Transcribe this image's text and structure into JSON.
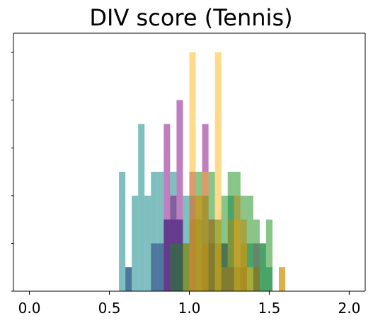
{
  "chart_data": {
    "type": "histogram",
    "title": "DIV score (Tennis)",
    "xlabel": "",
    "ylabel": "",
    "xlim": [
      -0.1,
      2.1
    ],
    "ylim": [
      0,
      5.4
    ],
    "x_ticks": [
      "0.0",
      "0.5",
      "1.0",
      "1.5",
      "2.0"
    ],
    "y_ticks_labeled": false,
    "grid": false,
    "legend": "none",
    "bin_width": 0.04,
    "series": [
      {
        "color": "#008080",
        "counts": [
          {
            "x": 0.58,
            "y": 2.5
          },
          {
            "x": 0.62,
            "y": 0.5
          },
          {
            "x": 0.66,
            "y": 2.0
          },
          {
            "x": 0.7,
            "y": 3.5
          },
          {
            "x": 0.74,
            "y": 2.0
          },
          {
            "x": 0.78,
            "y": 2.5
          },
          {
            "x": 0.82,
            "y": 2.5
          },
          {
            "x": 0.86,
            "y": 1.5
          },
          {
            "x": 0.9,
            "y": 2.5
          },
          {
            "x": 0.94,
            "y": 1.5
          },
          {
            "x": 0.98,
            "y": 2.0
          },
          {
            "x": 1.02,
            "y": 2.0
          },
          {
            "x": 1.06,
            "y": 1.5
          },
          {
            "x": 1.1,
            "y": 2.0
          },
          {
            "x": 1.14,
            "y": 1.0
          },
          {
            "x": 1.18,
            "y": 1.5
          },
          {
            "x": 1.22,
            "y": 1.0
          },
          {
            "x": 1.26,
            "y": 2.0
          },
          {
            "x": 1.3,
            "y": 0.5
          },
          {
            "x": 1.34,
            "y": 1.0
          },
          {
            "x": 1.38,
            "y": 1.0
          },
          {
            "x": 1.42,
            "y": 0.5
          },
          {
            "x": 1.46,
            "y": 1.0
          },
          {
            "x": 1.5,
            "y": 0.5
          }
        ]
      },
      {
        "color": "#1b2f7a",
        "counts": [
          {
            "x": 0.62,
            "y": 0.5
          },
          {
            "x": 0.78,
            "y": 1.0
          },
          {
            "x": 0.82,
            "y": 1.0
          },
          {
            "x": 0.86,
            "y": 1.5
          },
          {
            "x": 0.9,
            "y": 1.5
          },
          {
            "x": 0.94,
            "y": 1.5
          }
        ]
      },
      {
        "color": "#800080",
        "counts": [
          {
            "x": 0.86,
            "y": 3.5
          },
          {
            "x": 0.9,
            "y": 2.0
          },
          {
            "x": 0.94,
            "y": 4.0
          },
          {
            "x": 1.02,
            "y": 2.5
          },
          {
            "x": 1.1,
            "y": 3.5
          },
          {
            "x": 1.14,
            "y": 1.5
          },
          {
            "x": 1.22,
            "y": 1.0
          },
          {
            "x": 1.26,
            "y": 0.5
          },
          {
            "x": 1.34,
            "y": 0.5
          },
          {
            "x": 1.42,
            "y": 1.0
          }
        ]
      },
      {
        "color": "#138a13",
        "counts": [
          {
            "x": 0.9,
            "y": 1.0
          },
          {
            "x": 0.94,
            "y": 1.0
          },
          {
            "x": 0.98,
            "y": 1.0
          },
          {
            "x": 1.06,
            "y": 2.5
          },
          {
            "x": 1.1,
            "y": 2.0
          },
          {
            "x": 1.14,
            "y": 2.5
          },
          {
            "x": 1.18,
            "y": 1.5
          },
          {
            "x": 1.22,
            "y": 2.0
          },
          {
            "x": 1.26,
            "y": 2.5
          },
          {
            "x": 1.3,
            "y": 2.5
          },
          {
            "x": 1.34,
            "y": 2.0
          },
          {
            "x": 1.38,
            "y": 2.0
          },
          {
            "x": 1.42,
            "y": 1.5
          },
          {
            "x": 1.46,
            "y": 1.0
          },
          {
            "x": 1.5,
            "y": 1.5
          }
        ]
      },
      {
        "color": "#fdb515",
        "counts": [
          {
            "x": 1.02,
            "y": 5.0
          },
          {
            "x": 1.06,
            "y": 2.0
          },
          {
            "x": 1.1,
            "y": 2.5
          },
          {
            "x": 1.18,
            "y": 5.0
          },
          {
            "x": 1.3,
            "y": 1.5
          },
          {
            "x": 1.34,
            "y": 1.0
          },
          {
            "x": 1.38,
            "y": 0.5
          },
          {
            "x": 1.58,
            "y": 0.5
          }
        ]
      },
      {
        "color": "#b8860b",
        "counts": [
          {
            "x": 0.98,
            "y": 1.0
          },
          {
            "x": 1.02,
            "y": 1.5
          },
          {
            "x": 1.06,
            "y": 2.0
          },
          {
            "x": 1.1,
            "y": 1.0
          },
          {
            "x": 1.14,
            "y": 1.5
          },
          {
            "x": 1.18,
            "y": 1.0
          },
          {
            "x": 1.22,
            "y": 0.5
          },
          {
            "x": 1.26,
            "y": 1.5
          },
          {
            "x": 1.3,
            "y": 2.0
          },
          {
            "x": 1.34,
            "y": 1.5
          },
          {
            "x": 1.42,
            "y": 0.5
          },
          {
            "x": 1.58,
            "y": 0.5
          }
        ]
      }
    ]
  }
}
